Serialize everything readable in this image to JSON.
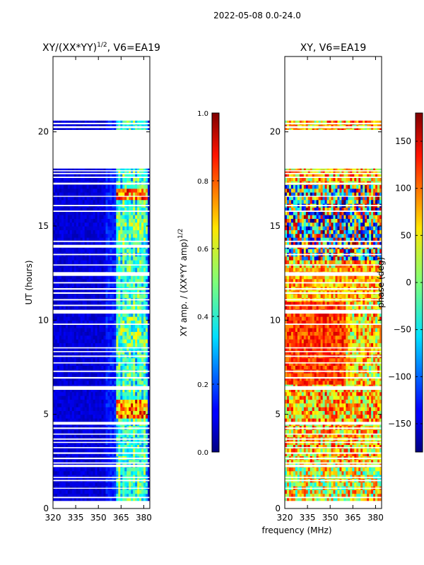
{
  "suptitle": "2022-05-08 0.0-24.0",
  "chart_data": [
    {
      "type": "heatmap",
      "title_main": "XY/(XX*YY)",
      "title_exp": "1/2",
      "title_tail": ", V6=EA19",
      "xlabel": "",
      "ylabel": "UT (hours)",
      "xlim": [
        320,
        384
      ],
      "ylim": [
        0,
        24
      ],
      "xticks": [
        "320",
        "335",
        "350",
        "365",
        "380"
      ],
      "xtick_values": [
        320,
        335,
        350,
        365,
        380
      ],
      "yticks": [
        "0",
        "5",
        "10",
        "15",
        "20"
      ],
      "ytick_values": [
        0,
        5,
        10,
        15,
        20
      ],
      "data_extent_hours": [
        0.4,
        20.6
      ],
      "colorbar": {
        "label_main": "XY amp. / (XX*YY amp)",
        "label_exp": "1/2",
        "range": [
          0.0,
          1.0
        ],
        "ticks": [
          "0.0",
          "0.2",
          "0.4",
          "0.6",
          "0.8",
          "1.0"
        ],
        "tick_values": [
          0.0,
          0.2,
          0.4,
          0.6,
          0.8,
          1.0
        ]
      }
    },
    {
      "type": "heatmap",
      "title_main": "XY, V6=EA19",
      "xlabel": "frequency (MHz)",
      "ylabel": "",
      "xlim": [
        320,
        384
      ],
      "ylim": [
        0,
        24
      ],
      "xticks": [
        "320",
        "335",
        "350",
        "365",
        "380"
      ],
      "xtick_values": [
        320,
        335,
        350,
        365,
        380
      ],
      "yticks": [
        "0",
        "5",
        "10",
        "15",
        "20"
      ],
      "ytick_values": [
        0,
        5,
        10,
        15,
        20
      ],
      "data_extent_hours": [
        0.4,
        20.6
      ],
      "colorbar": {
        "label_main": "phase (deg)",
        "range": [
          -180,
          180
        ],
        "ticks": [
          "−150",
          "−100",
          "−50",
          "0",
          "50",
          "100",
          "150"
        ],
        "tick_values": [
          -150,
          -100,
          -50,
          0,
          50,
          100,
          150
        ]
      }
    }
  ],
  "gap_bands_hours": [
    [
      0.55,
      0.62
    ],
    [
      1.05,
      1.1
    ],
    [
      1.45,
      1.52
    ],
    [
      1.62,
      1.68
    ],
    [
      2.2,
      2.32
    ],
    [
      2.38,
      2.45
    ],
    [
      2.62,
      2.7
    ],
    [
      2.9,
      2.98
    ],
    [
      3.2,
      3.26
    ],
    [
      3.48,
      3.54
    ],
    [
      3.65,
      3.72
    ],
    [
      3.92,
      3.98
    ],
    [
      4.22,
      4.3
    ],
    [
      4.45,
      4.6
    ],
    [
      6.3,
      6.5
    ],
    [
      6.9,
      6.98
    ],
    [
      7.25,
      7.32
    ],
    [
      7.7,
      7.76
    ],
    [
      8.05,
      8.12
    ],
    [
      8.3,
      8.36
    ],
    [
      8.5,
      8.56
    ],
    [
      9.75,
      9.82
    ],
    [
      10.35,
      10.55
    ],
    [
      10.75,
      10.82
    ],
    [
      11.05,
      11.12
    ],
    [
      11.4,
      11.48
    ],
    [
      11.62,
      11.7
    ],
    [
      11.95,
      12.02
    ],
    [
      12.35,
      12.55
    ],
    [
      12.9,
      12.96
    ],
    [
      13.45,
      13.52
    ],
    [
      13.85,
      14.0
    ],
    [
      14.15,
      14.22
    ],
    [
      15.75,
      15.82
    ],
    [
      16.05,
      16.12
    ],
    [
      16.55,
      16.6
    ],
    [
      17.2,
      17.3
    ],
    [
      17.55,
      17.62
    ],
    [
      17.75,
      17.82
    ],
    [
      17.9,
      17.96
    ],
    [
      18.05,
      20.1
    ],
    [
      20.2,
      20.3
    ],
    [
      20.4,
      20.48
    ]
  ]
}
